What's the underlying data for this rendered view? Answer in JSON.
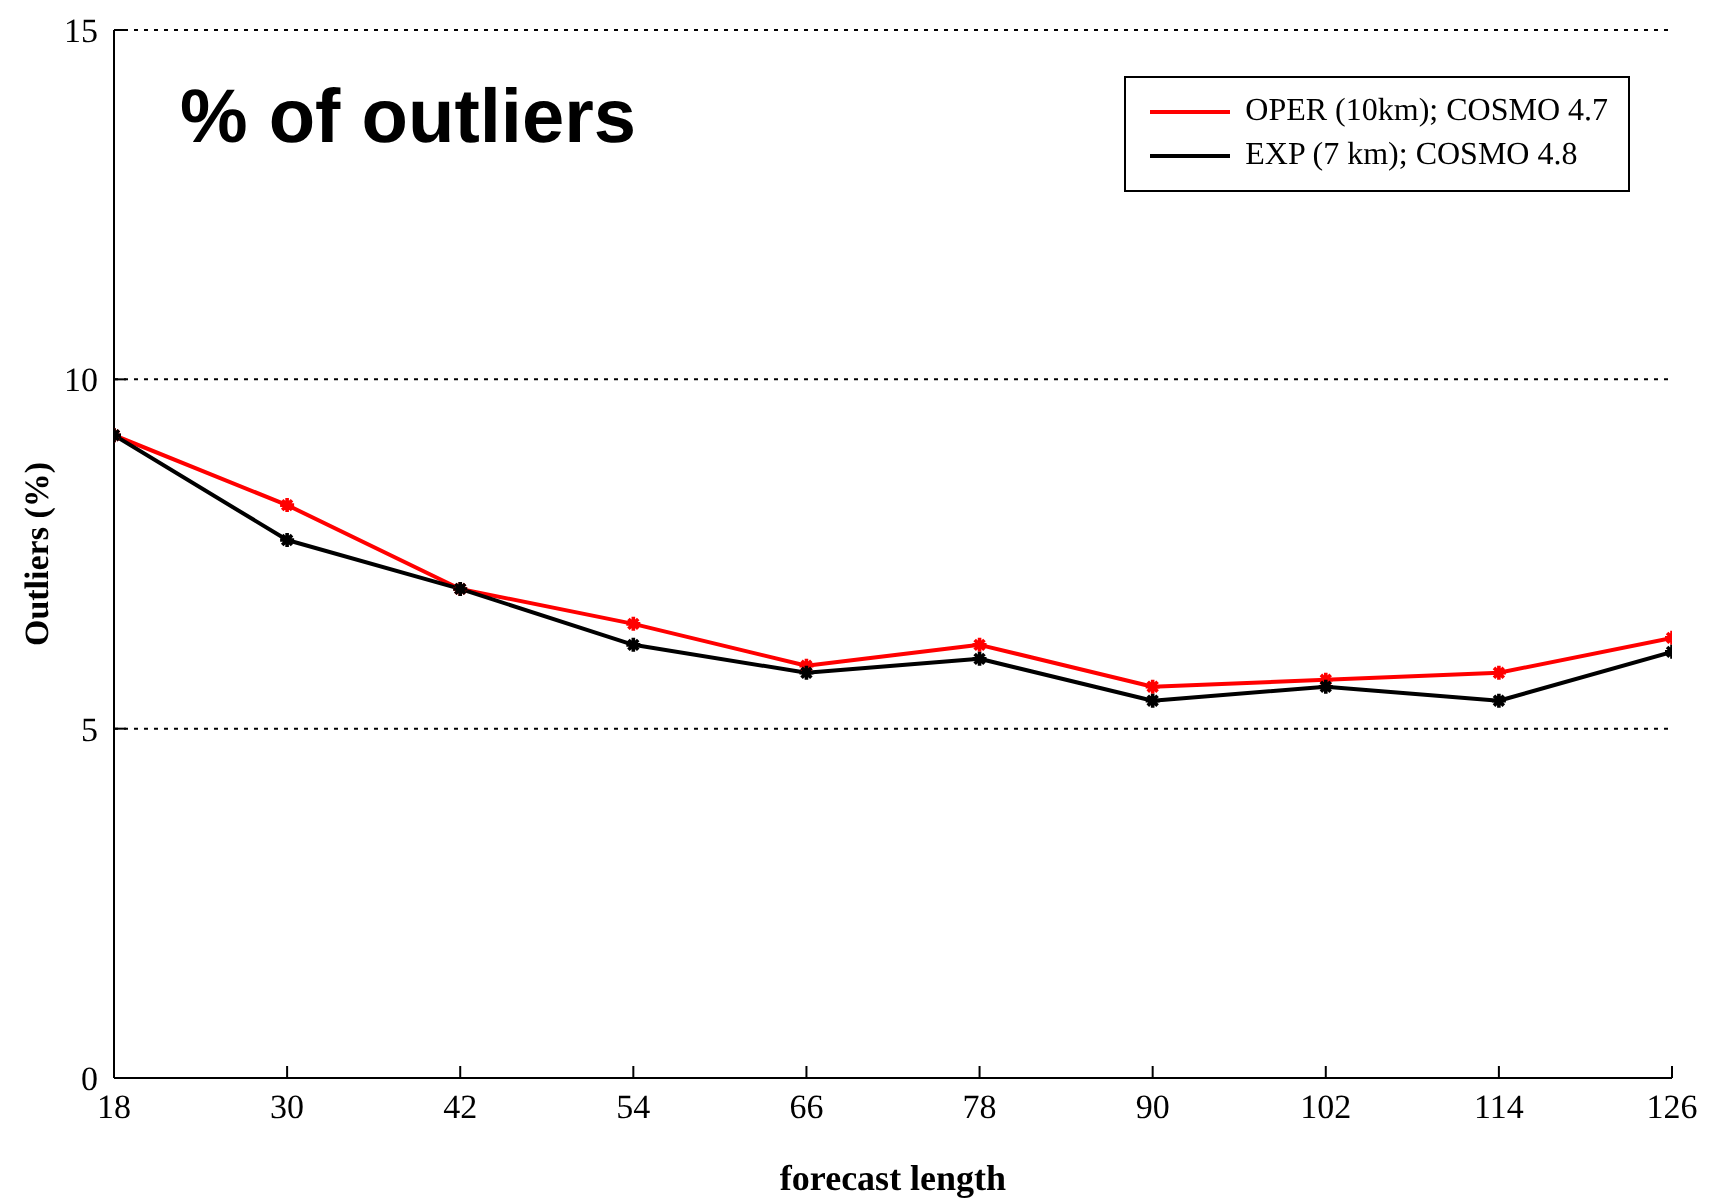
{
  "chart_data": {
    "type": "line",
    "title": "% of outliers",
    "xlabel": "forecast length",
    "ylabel": "Outliers (%)",
    "x": [
      18,
      30,
      42,
      54,
      66,
      78,
      90,
      102,
      114,
      126
    ],
    "series": [
      {
        "name": "OPER (10km); COSMO 4.7",
        "color": "#ff0000",
        "values": [
          9.2,
          8.2,
          7.0,
          6.5,
          5.9,
          6.2,
          5.6,
          5.7,
          5.8,
          6.3
        ]
      },
      {
        "name": "EXP (7 km); COSMO 4.8",
        "color": "#000000",
        "values": [
          9.2,
          7.7,
          7.0,
          6.2,
          5.8,
          6.0,
          5.4,
          5.6,
          5.4,
          6.1
        ]
      }
    ],
    "xlim": [
      18,
      126
    ],
    "xticks": [
      18,
      30,
      42,
      54,
      66,
      78,
      90,
      102,
      114,
      126
    ],
    "ylim": [
      0,
      15
    ],
    "yticks": [
      0,
      5,
      10,
      15
    ],
    "grid": "y",
    "legend": "top right",
    "marker": "cross",
    "line_style": "solid"
  }
}
